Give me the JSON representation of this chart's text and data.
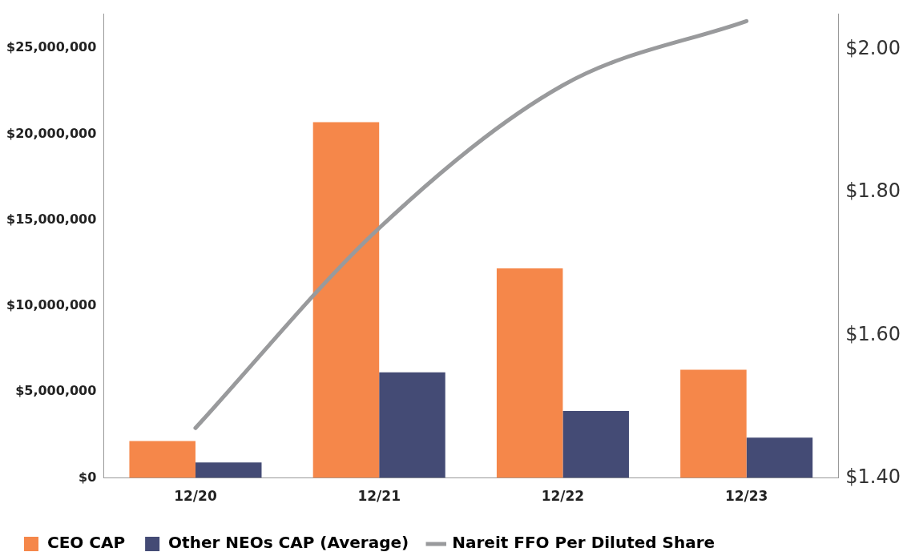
{
  "chart_data": {
    "type": "bar",
    "categories": [
      "12/20",
      "12/21",
      "12/22",
      "12/23"
    ],
    "series": [
      {
        "name": "CEO CAP",
        "color": "#f5874a",
        "values": [
          2150000,
          20700000,
          12200000,
          6300000
        ]
      },
      {
        "name": "Other NEOs CAP (Average)",
        "color": "#444b75",
        "values": [
          900000,
          6150000,
          3900000,
          2350000
        ]
      },
      {
        "name": "Nareit FFO Per Diluted Share",
        "type": "line",
        "axis": "y2",
        "color": "#999a9c",
        "values": [
          1.47,
          1.75,
          1.95,
          2.04
        ],
        "marker": "none"
      }
    ],
    "ylim": [
      0,
      27000000
    ],
    "yticks": [
      {
        "value": 0,
        "label": "$0"
      },
      {
        "value": 5000000,
        "label": "$5,000,000"
      },
      {
        "value": 10000000,
        "label": "$10,000,000"
      },
      {
        "value": 15000000,
        "label": "$15,000,000"
      },
      {
        "value": 20000000,
        "label": "$20,000,000"
      },
      {
        "value": 25000000,
        "label": "$25,000,000"
      }
    ],
    "y2lim": [
      1.4,
      2.05
    ],
    "y2ticks": [
      {
        "value": 1.4,
        "label": "$1.40"
      },
      {
        "value": 1.6,
        "label": "$1.60"
      },
      {
        "value": 1.8,
        "label": "$1.80"
      },
      {
        "value": 2.0,
        "label": "$2.00"
      }
    ],
    "grid": false,
    "legend": "bottom"
  }
}
